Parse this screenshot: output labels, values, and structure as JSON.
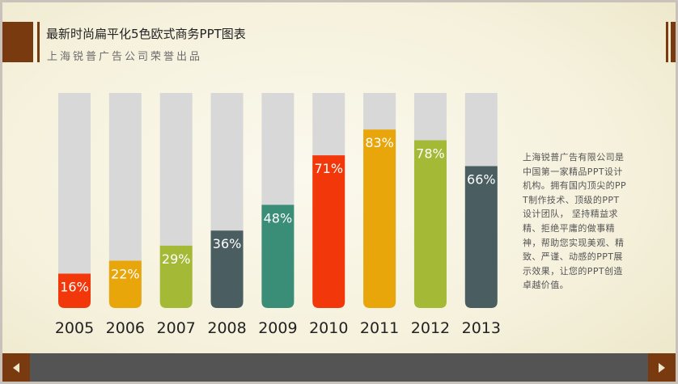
{
  "header": {
    "title": "最新时尚扁平化5色欧式商务PPT图表",
    "subtitle": "上海锐普广告公司荣誉出品"
  },
  "description": "上海锐普广告有限公司是中国第一家精品PPT设计机构。拥有国内顶尖的PPT制作技术、顶级的PPT设计团队， 坚持精益求精、拒绝平庸的做事精神，帮助您实现美观、精致、严谨、动感的PPT展示效果，让您的PPT创造卓越价值。",
  "chart_data": {
    "type": "bar",
    "categories": [
      "2005",
      "2006",
      "2007",
      "2008",
      "2009",
      "2010",
      "2011",
      "2012",
      "2013"
    ],
    "values": [
      16,
      22,
      29,
      36,
      48,
      71,
      83,
      78,
      66
    ],
    "value_labels": [
      "16%",
      "22%",
      "29%",
      "36%",
      "48%",
      "71%",
      "83%",
      "78%",
      "66%"
    ],
    "ylim": [
      0,
      100
    ],
    "unit": "%",
    "track_color": "#d8d8d8",
    "colors": [
      "#f2380a",
      "#e8a60a",
      "#a4b936",
      "#4a5d60",
      "#3a8e78",
      "#f2380a",
      "#e8a60a",
      "#a4b936",
      "#4a5d60"
    ]
  },
  "nav": {
    "prev_icon": "arrow-left-icon",
    "next_icon": "arrow-right-icon"
  },
  "colors": {
    "accent": "#7a3a10",
    "footer": "#545454"
  }
}
